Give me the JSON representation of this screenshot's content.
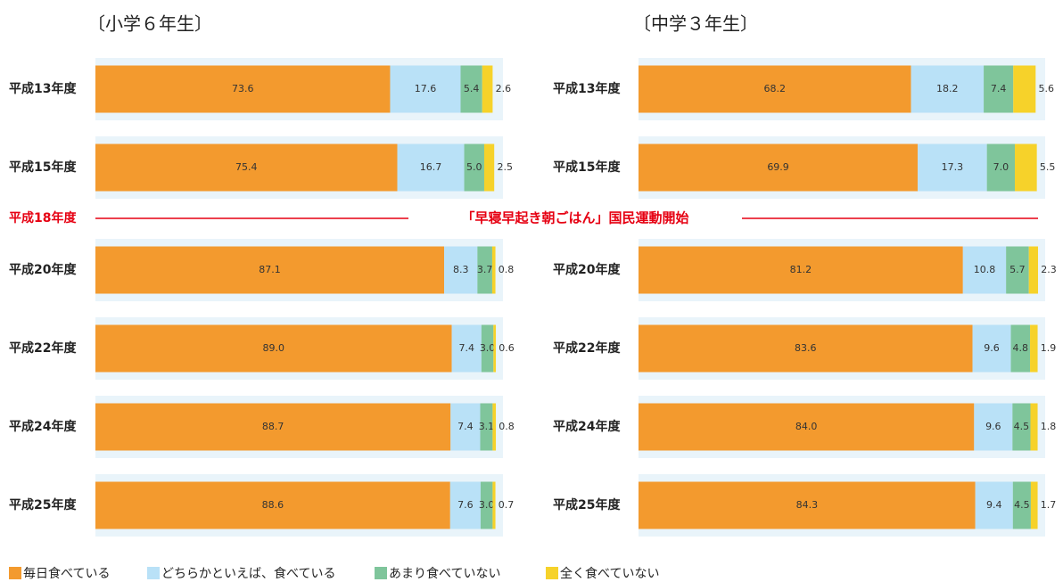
{
  "chart_data": [
    {
      "type": "bar",
      "orientation": "horizontal",
      "stacked": true,
      "title": "〔小学６年生〕",
      "categories": [
        "平成13年度",
        "平成15年度",
        "平成20年度",
        "平成22年度",
        "平成24年度",
        "平成25年度"
      ],
      "xlim": [
        0,
        100
      ],
      "series": [
        {
          "name": "毎日食べている",
          "color": "#f39a2e",
          "values": [
            73.6,
            75.4,
            87.1,
            89.0,
            88.7,
            88.6
          ],
          "value_labels": [
            "73.6",
            "75.4",
            "87.1",
            "89.0",
            "88.7",
            "88.6"
          ]
        },
        {
          "name": "どちらかといえば、食べている",
          "color": "#b9e1f7",
          "values": [
            17.6,
            16.7,
            8.3,
            7.4,
            7.4,
            7.6
          ],
          "value_labels": [
            "17.6",
            "16.7",
            "8.3",
            "7.4",
            "7.4",
            "7.6"
          ]
        },
        {
          "name": "あまり食べていない",
          "color": "#7fc59b",
          "values": [
            5.4,
            5.0,
            3.7,
            3.0,
            3.1,
            3.0
          ],
          "value_labels": [
            "5.4",
            "5.0",
            "3.7",
            "3.0",
            "3.1",
            "3.0"
          ]
        },
        {
          "name": "全く食べていない",
          "color": "#f6d22a",
          "values": [
            2.6,
            2.5,
            0.8,
            0.6,
            0.8,
            0.7
          ],
          "value_labels": [
            "2.6",
            "2.5",
            "0.8",
            "0.6",
            "0.8",
            "0.7"
          ]
        }
      ]
    },
    {
      "type": "bar",
      "orientation": "horizontal",
      "stacked": true,
      "title": "〔中学３年生〕",
      "categories": [
        "平成13年度",
        "平成15年度",
        "平成20年度",
        "平成22年度",
        "平成24年度",
        "平成25年度"
      ],
      "xlim": [
        0,
        100
      ],
      "series": [
        {
          "values": [
            68.2,
            69.9,
            81.2,
            83.6,
            84.0,
            84.3
          ],
          "value_labels": [
            "68.2",
            "69.9",
            "81.2",
            "83.6",
            "84.0",
            "84.3"
          ]
        },
        {
          "values": [
            18.2,
            17.3,
            10.8,
            9.6,
            9.6,
            9.4
          ],
          "value_labels": [
            "18.2",
            "17.3",
            "10.8",
            "9.6",
            "9.6",
            "9.4"
          ]
        },
        {
          "values": [
            7.4,
            7.0,
            5.7,
            4.8,
            4.5,
            4.5
          ],
          "value_labels": [
            "7.4",
            "7.0",
            "5.7",
            "4.8",
            "4.5",
            "4.5"
          ]
        },
        {
          "values": [
            5.6,
            5.5,
            2.3,
            1.9,
            1.8,
            1.7
          ],
          "value_labels": [
            "5.6",
            "5.5",
            "2.3",
            "1.9",
            "1.8",
            "1.7"
          ]
        }
      ]
    }
  ],
  "annotation": {
    "label": "平成18年度",
    "text": "「早寝早起き朝ごはん」国民運動開始",
    "color": "#e60012"
  }
}
